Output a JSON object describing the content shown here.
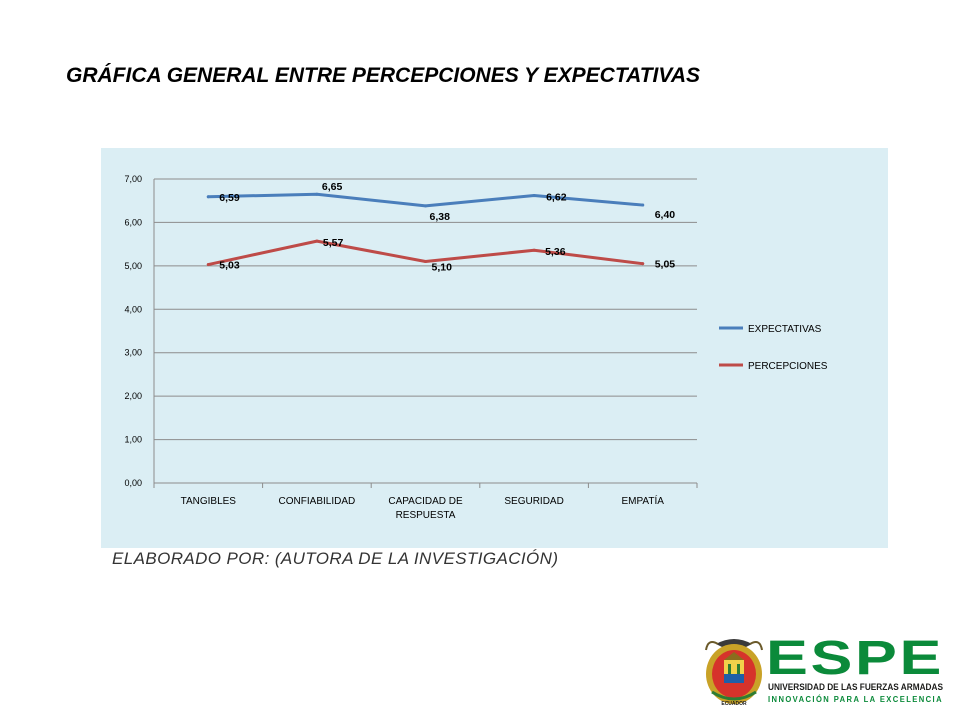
{
  "slide": {
    "title": "GRÁFICA GENERAL ENTRE PERCEPCIONES Y EXPECTATIVAS",
    "credit": "ELABORADO POR: (AUTORA DE LA INVESTIGACIÓN)"
  },
  "logo": {
    "wordmark": "ESPE",
    "university": "UNIVERSIDAD DE LAS FUERZAS ARMADAS",
    "motto": "INNOVACIÓN PARA LA EXCELENCIA",
    "country": "ECUADOR",
    "colors": {
      "green": "#0b8a3a",
      "dark": "#1d1d1b"
    }
  },
  "chart_data": {
    "type": "line",
    "categories": [
      "TANGIBLES",
      "CONFIABILIDAD",
      "CAPACIDAD DE RESPUESTA",
      "SEGURIDAD",
      "EMPATÍA"
    ],
    "category_tick_lines": [
      [
        "TANGIBLES"
      ],
      [
        "CONFIABILIDAD"
      ],
      [
        "CAPACIDAD DE",
        "RESPUESTA"
      ],
      [
        "SEGURIDAD"
      ],
      [
        "EMPATÍA"
      ]
    ],
    "series": [
      {
        "name": "EXPECTATIVAS",
        "color": "#4a7ebb",
        "values": [
          6.59,
          6.65,
          6.38,
          6.62,
          6.4
        ],
        "labels": [
          "6,59",
          "6,65",
          "6,38",
          "6,62",
          "6,40"
        ]
      },
      {
        "name": "PERCEPCIONES",
        "color": "#be4b48",
        "values": [
          5.03,
          5.57,
          5.1,
          5.36,
          5.05
        ],
        "labels": [
          "5,03",
          "5,57",
          "5,10",
          "5,36",
          "5,05"
        ]
      }
    ],
    "ylim": [
      0,
      7
    ],
    "yticks": [
      0,
      1,
      2,
      3,
      4,
      5,
      6,
      7
    ],
    "ytick_labels": [
      "0,00",
      "1,00",
      "2,00",
      "3,00",
      "4,00",
      "5,00",
      "6,00",
      "7,00"
    ],
    "grid": true,
    "legend_position": "right",
    "background": "#dbeef4"
  }
}
